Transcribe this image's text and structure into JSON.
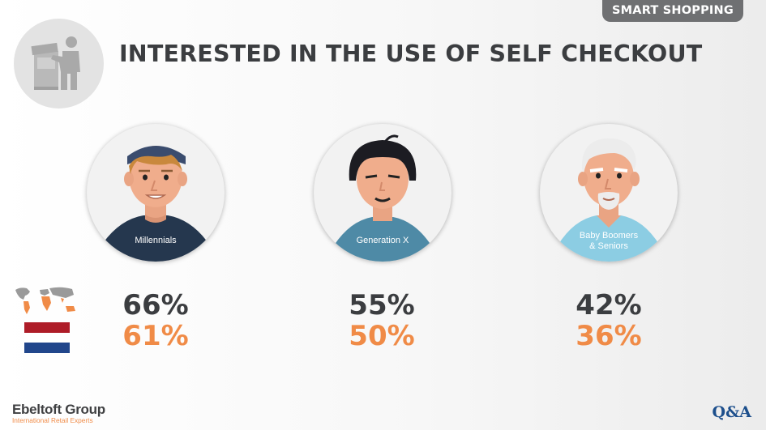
{
  "header": {
    "tag": "SMART SHOPPING",
    "title": "INTERESTED IN THE USE OF SELF CHECKOUT"
  },
  "segments": [
    {
      "label": "Millennials",
      "global_pct": "66%",
      "nl_pct": "61%",
      "shirt_color": "#25374e"
    },
    {
      "label": "Generation X",
      "global_pct": "55%",
      "nl_pct": "50%",
      "shirt_color": "#4e8aa6"
    },
    {
      "label": "Baby Boomers\n& Seniors",
      "global_pct": "42%",
      "nl_pct": "36%",
      "shirt_color": "#8ccde3"
    }
  ],
  "legend": {
    "global_icon": "world-map-icon",
    "nl_icon": "netherlands-flag-icon",
    "flag_colors": [
      "#ae1c28",
      "#ffffff",
      "#21468b"
    ]
  },
  "footer": {
    "logo_main": "Ebeltoft Group",
    "logo_sub": "International Retail Experts",
    "qa": "Q&A"
  },
  "colors": {
    "global": "#3b3d40",
    "nl": "#f08b47",
    "tag_bg": "#6f7072"
  }
}
